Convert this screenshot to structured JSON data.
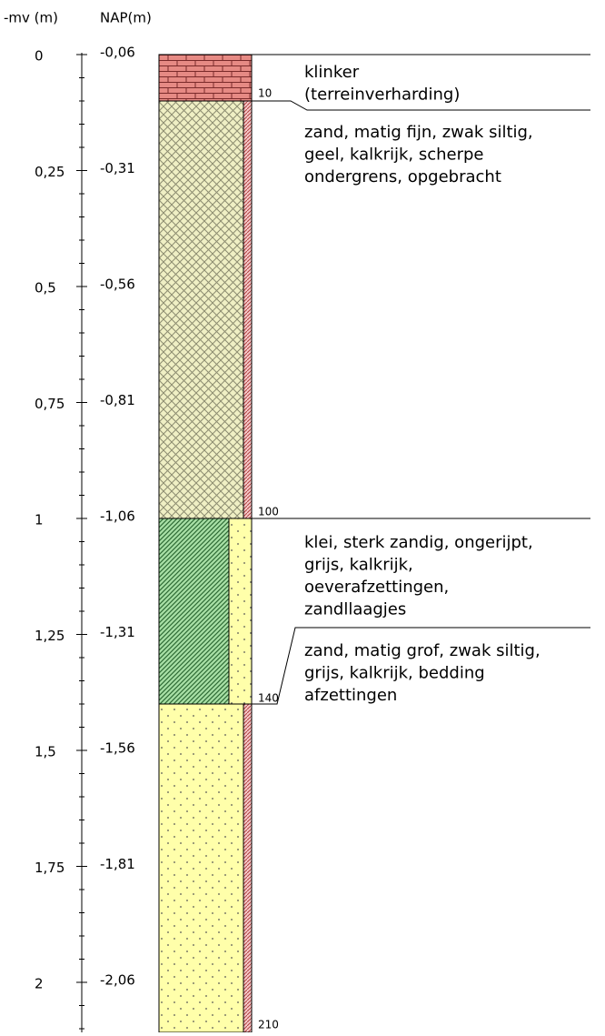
{
  "header": {
    "depth_label": "-mv (m)",
    "nap_label": "NAP(m)"
  },
  "depth_ticks": [
    "0",
    "0,25",
    "0,5",
    "0,75",
    "1",
    "1,25",
    "1,5",
    "1,75",
    "2"
  ],
  "nap_ticks": [
    "-0,06",
    "-0,31",
    "-0,56",
    "-0,81",
    "-1,06",
    "-1,31",
    "-1,56",
    "-1,81",
    "-2,06"
  ],
  "layers": [
    {
      "bottom_label": "10",
      "description": [
        "klinker",
        "(terreinverharding)"
      ]
    },
    {
      "bottom_label": "100",
      "description": [
        "zand, matig fijn, zwak siltig,",
        "geel, kalkrijk, scherpe",
        "ondergrens, opgebracht"
      ]
    },
    {
      "bottom_label": "140",
      "description": [
        "klei, sterk zandig, ongerijpt,",
        "grijs, kalkrijk,",
        "oeverafzettingen,",
        "zandllaagjes"
      ]
    },
    {
      "bottom_label": "210",
      "description": [
        "zand, matig grof, zwak siltig,",
        "grijs, kalkrijk, bedding",
        "afzettingen"
      ]
    }
  ]
}
